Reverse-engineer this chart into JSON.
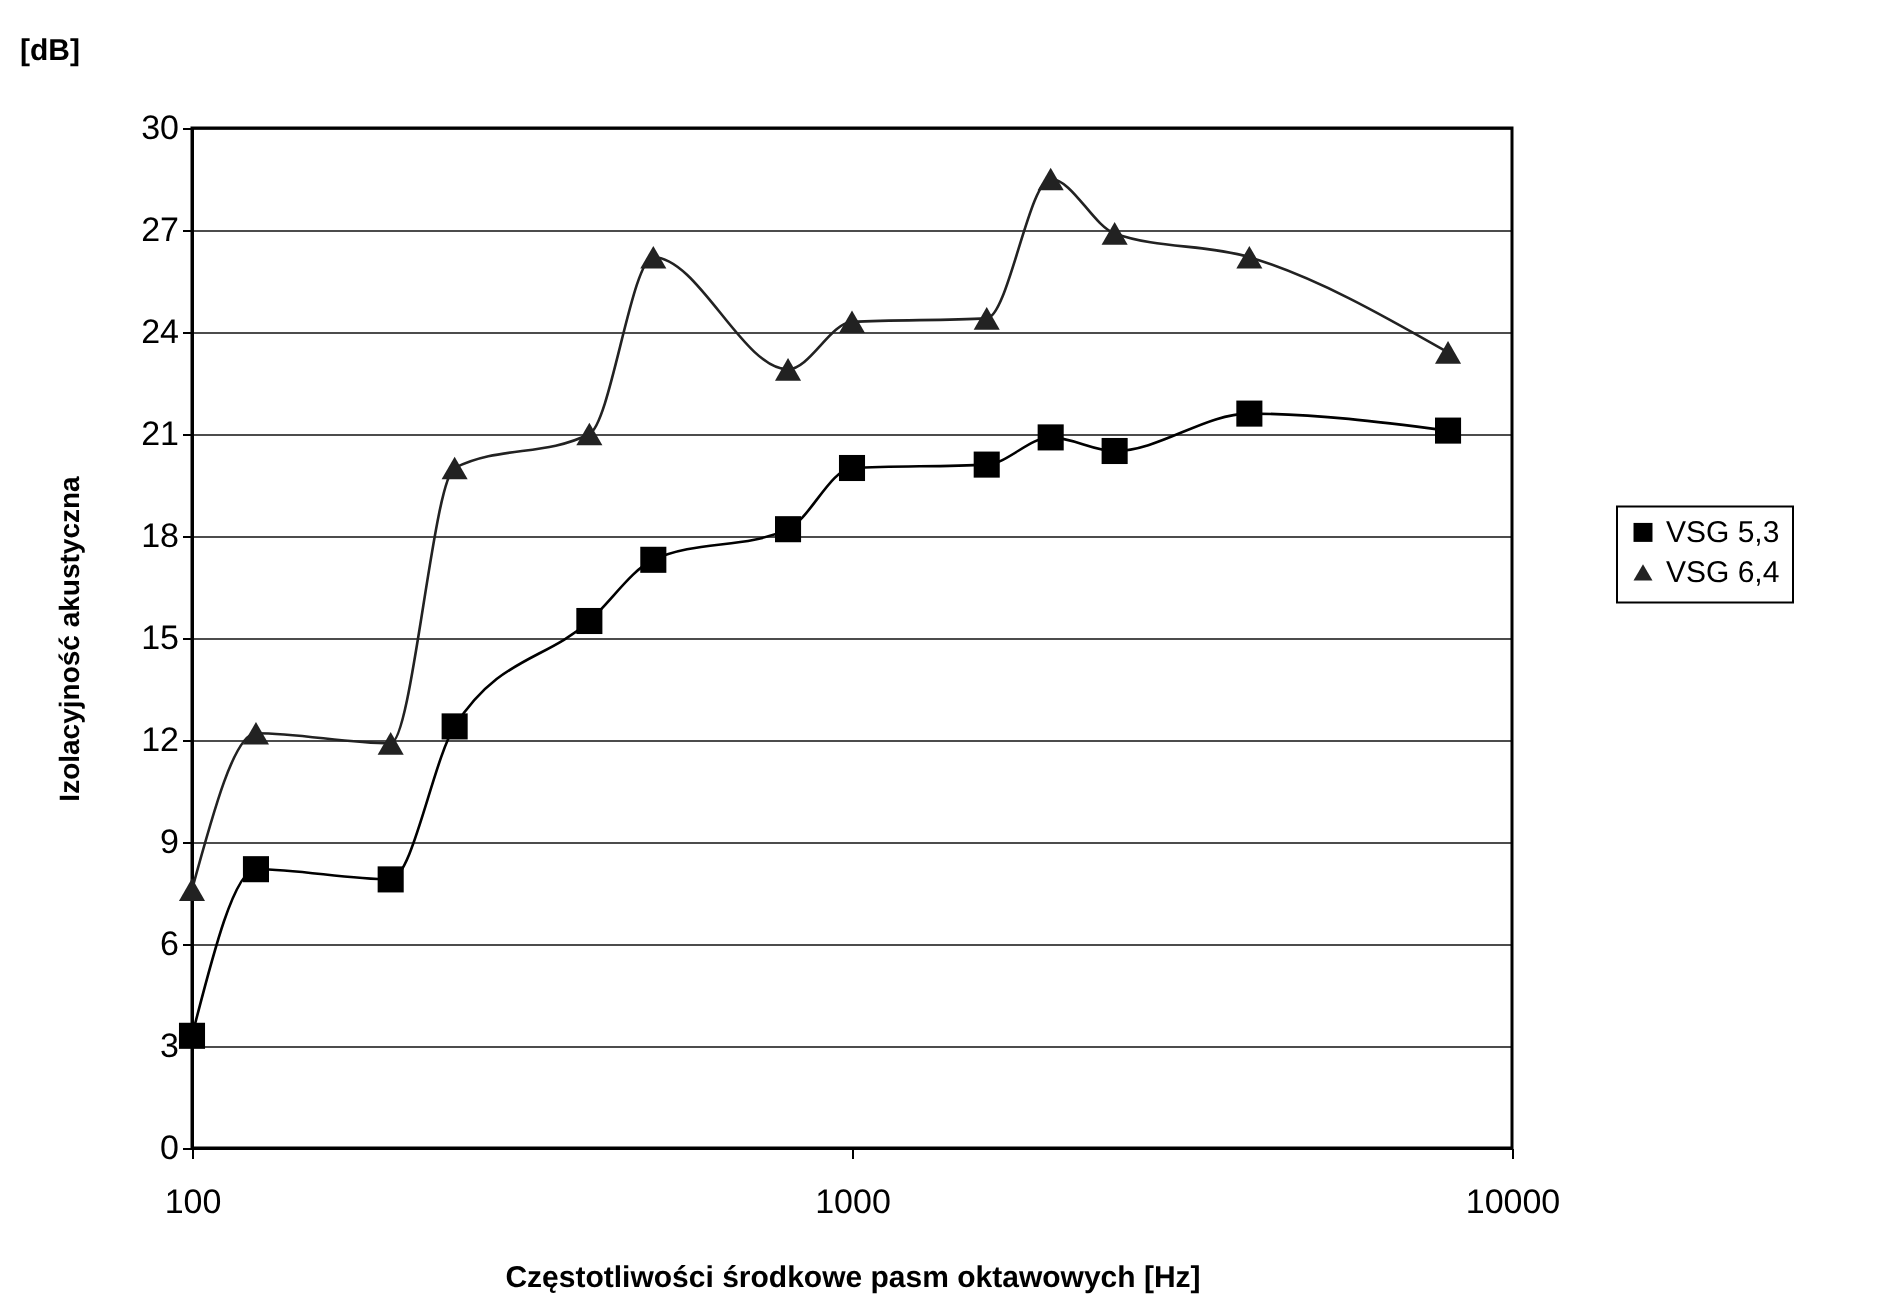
{
  "chart_data": {
    "type": "line",
    "xlabel": "Częstotliwości środkowe pasm oktawowych [Hz]",
    "ylabel": "Izolacyjność akustyczna",
    "annotations": [
      "[dB]"
    ],
    "x": [
      100,
      125,
      200,
      250,
      400,
      500,
      800,
      1000,
      1600,
      2000,
      2500,
      4000,
      8000
    ],
    "series": [
      {
        "name": "VSG 5,3",
        "color": "#000000",
        "marker": "square",
        "values": [
          3.3,
          8.2,
          7.9,
          12.4,
          15.5,
          17.3,
          18.2,
          20.0,
          20.1,
          20.9,
          20.5,
          21.6,
          21.1
        ]
      },
      {
        "name": "VSG 6,4",
        "color": "#222222",
        "marker": "triangle",
        "values": [
          7.6,
          12.2,
          11.9,
          20.0,
          21.0,
          26.2,
          22.9,
          24.3,
          24.4,
          28.5,
          26.9,
          26.2,
          23.4
        ]
      }
    ],
    "log": "x",
    "xlim": [
      100,
      10000
    ],
    "xticks": [
      100,
      1000,
      10000
    ],
    "ylim": [
      0,
      30
    ],
    "yticks": [
      0,
      3,
      6,
      9,
      12,
      15,
      18,
      21,
      24,
      27,
      30
    ],
    "grid": "y",
    "legend": "right",
    "line_style": "solid"
  }
}
